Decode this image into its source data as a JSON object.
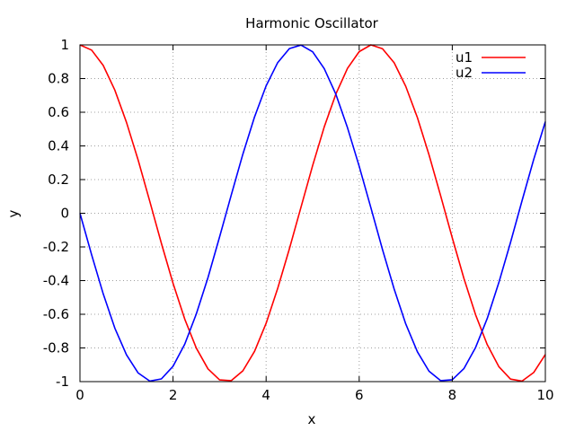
{
  "chart_data": {
    "type": "line",
    "title": "Harmonic Oscillator",
    "xlabel": "x",
    "ylabel": "y",
    "xlim": [
      0,
      10
    ],
    "ylim": [
      -1,
      1
    ],
    "grid": true,
    "legend_position": "top-right",
    "x_ticks": [
      "0",
      "2",
      "4",
      "6",
      "8",
      "10"
    ],
    "y_ticks": [
      "-1",
      "-0.8",
      "-0.6",
      "-0.4",
      "-0.2",
      "0",
      "0.2",
      "0.4",
      "0.6",
      "0.8",
      "1"
    ],
    "x": [
      0,
      0.25,
      0.5,
      0.75,
      1.0,
      1.25,
      1.5,
      1.75,
      2.0,
      2.25,
      2.5,
      2.75,
      3.0,
      3.25,
      3.5,
      3.75,
      4.0,
      4.25,
      4.5,
      4.75,
      5.0,
      5.25,
      5.5,
      5.75,
      6.0,
      6.25,
      6.5,
      6.75,
      7.0,
      7.25,
      7.5,
      7.75,
      8.0,
      8.25,
      8.5,
      8.75,
      9.0,
      9.25,
      9.5,
      9.75,
      10.0
    ],
    "series": [
      {
        "name": "u1",
        "color": "#ff0000",
        "values": [
          1.0,
          0.969,
          0.878,
          0.732,
          0.54,
          0.315,
          0.071,
          -0.178,
          -0.416,
          -0.628,
          -0.801,
          -0.924,
          -0.99,
          -0.994,
          -0.936,
          -0.82,
          -0.654,
          -0.446,
          -0.211,
          0.036,
          0.284,
          0.513,
          0.709,
          0.861,
          0.96,
          1.0,
          0.977,
          0.894,
          0.754,
          0.568,
          0.347,
          0.105,
          -0.146,
          -0.386,
          -0.602,
          -0.78,
          -0.911,
          -0.985,
          -0.997,
          -0.946,
          -0.839
        ]
      },
      {
        "name": "u2",
        "color": "#0000ff",
        "values": [
          0,
          -0.247,
          -0.479,
          -0.682,
          -0.841,
          -0.949,
          -0.997,
          -0.984,
          -0.909,
          -0.778,
          -0.598,
          -0.382,
          -0.141,
          0.108,
          0.351,
          0.572,
          0.757,
          0.895,
          0.978,
          0.999,
          0.959,
          0.859,
          0.706,
          0.508,
          0.279,
          0.033,
          -0.215,
          -0.45,
          -0.657,
          -0.823,
          -0.938,
          -0.994,
          -0.989,
          -0.923,
          -0.798,
          -0.625,
          -0.412,
          -0.174,
          0.075,
          0.319,
          0.544
        ]
      }
    ]
  }
}
